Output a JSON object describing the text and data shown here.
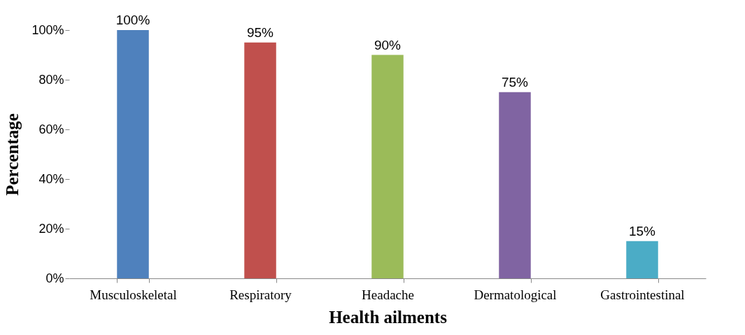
{
  "chart_data": {
    "type": "bar",
    "xlabel": "Health ailments",
    "ylabel": "Percentage",
    "categories": [
      "Musculoskeletal",
      "Respiratory",
      "Headache",
      "Dermatological",
      "Gastrointestinal"
    ],
    "values": [
      100,
      95,
      90,
      75,
      15
    ],
    "colors": [
      "#4f81bd",
      "#c0504d",
      "#9bbb59",
      "#8064a2",
      "#4bacc6"
    ],
    "value_labels": [
      "100%",
      "95%",
      "90%",
      "75%",
      "15%"
    ],
    "ylim": [
      0,
      100
    ],
    "yticks": [
      {
        "value": 0,
        "label": "0%"
      },
      {
        "value": 20,
        "label": "20%"
      },
      {
        "value": 40,
        "label": "40%"
      },
      {
        "value": 60,
        "label": "60%"
      },
      {
        "value": 80,
        "label": "80%"
      },
      {
        "value": 100,
        "label": "100%"
      }
    ],
    "grid": false
  }
}
